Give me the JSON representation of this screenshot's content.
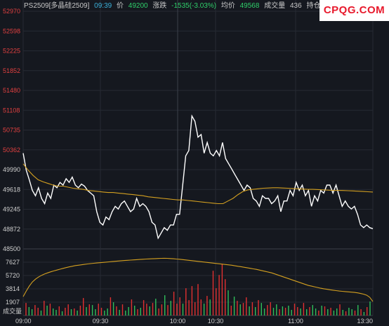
{
  "header": {
    "symbol": "PS2509[多晶硅2509]",
    "time": "09:39",
    "price_label": "价",
    "price": "49200",
    "change_label": "涨跌",
    "change": "-1535(-3.03%)",
    "avg_label": "均价",
    "avg": "49568",
    "volume_label": "成交量",
    "volume": "436",
    "oi_label": "持仓"
  },
  "logo": "CPQG.COM",
  "colors": {
    "background": "#15181f",
    "price_line": "#ffffff",
    "avg_line": "#d4a020",
    "up_tick": "#e04040",
    "vol_up": "#e03030",
    "vol_down": "#2fbf5a"
  },
  "chart_data": [
    {
      "type": "line",
      "title": "",
      "x_ticks": [
        "09:00",
        "09:30",
        "10:00",
        "10:30",
        "11:00",
        "13:30"
      ],
      "y_ticks": [
        "52970",
        "52598",
        "52225",
        "51852",
        "51480",
        "51108",
        "50735",
        "50362",
        "49990",
        "49618",
        "49245",
        "48872",
        "48500"
      ],
      "ylim": [
        48500,
        52970
      ],
      "series": [
        {
          "name": "",
          "values": [
            50300,
            49980,
            49800,
            49600,
            49500,
            49650,
            49450,
            49350,
            49550,
            49450,
            49700,
            49650,
            49750,
            49700,
            49820,
            49750,
            49850,
            49700,
            49650,
            49720,
            49680,
            49600,
            49550,
            49500,
            49200,
            49000,
            48950,
            49100,
            49050,
            49200,
            49300,
            49250,
            49350,
            49400,
            49300,
            49200,
            49250,
            49450,
            49300,
            49350,
            49300,
            49200,
            49000,
            48950,
            48700,
            48800,
            48900,
            48850,
            48950,
            48950,
            49150,
            49150,
            49700,
            50250,
            50350,
            51000,
            50900,
            50600,
            50650,
            50300,
            50500,
            50300,
            50250,
            50350,
            50250,
            50500,
            50200,
            50100,
            50000,
            49900,
            49800,
            49700,
            49600,
            49700,
            49650,
            49450,
            49400,
            49300,
            49500,
            49450,
            49450,
            49350,
            49400,
            49500,
            49200,
            49400,
            49400,
            49600,
            49500,
            49750,
            49600,
            49700,
            49500,
            49600,
            49300,
            49500,
            49400,
            49600,
            49550,
            49700,
            49700,
            49550,
            49700,
            49500,
            49300,
            49400,
            49300,
            49250,
            49300,
            49150,
            48950,
            48900,
            48950,
            48900,
            48880
          ]
        },
        {
          "name": "",
          "values": [
            50100,
            49980,
            49880,
            49800,
            49760,
            49730,
            49700,
            49680,
            49680,
            49660,
            49640,
            49630,
            49620,
            49600,
            49590,
            49580,
            49570,
            49560,
            49560,
            49550,
            49540,
            49530,
            49520,
            49510,
            49500,
            49480,
            49470,
            49460,
            49450,
            49440,
            49430,
            49420,
            49420,
            49410,
            49400,
            49390,
            49380,
            49370,
            49360,
            49350,
            49350,
            49400,
            49450,
            49520,
            49580,
            49610,
            49620,
            49630,
            49640,
            49645,
            49650,
            49650,
            49645,
            49640,
            49635,
            49630,
            49625,
            49620,
            49620,
            49615,
            49610,
            49605,
            49600,
            49600,
            49598,
            49595,
            49590,
            49585,
            49580,
            49575,
            49570
          ]
        }
      ]
    },
    {
      "type": "bar",
      "title": "",
      "y_label": "成交量",
      "y_ticks": [
        "7627",
        "5720",
        "3814",
        "1907"
      ],
      "ylim": [
        0,
        9534
      ],
      "volumes": [
        1800,
        1200,
        900,
        1500,
        1100,
        700,
        2100,
        1400,
        1700,
        1000,
        800,
        1300,
        600,
        1100,
        1600,
        900,
        1000,
        700,
        1400,
        2500,
        1200,
        1600,
        1500,
        900,
        1700,
        1100,
        700,
        1000,
        2600,
        1900,
        1300,
        800,
        1600,
        700,
        1200,
        2300,
        1400,
        900,
        1100,
        2200,
        1700,
        1300,
        1800,
        2400,
        1000,
        1600,
        2900,
        1500,
        2100,
        3400,
        1700,
        2600,
        1700,
        3900,
        2200,
        4200,
        1900,
        4500,
        2300,
        1700,
        2800,
        2300,
        6400,
        3900,
        5800,
        7400,
        5200,
        3600,
        1400,
        2700,
        2100,
        1600,
        1800,
        2600,
        1300,
        1900,
        1200,
        2200,
        1800,
        1000,
        1500,
        1900,
        1100,
        1600,
        900,
        1300,
        1100,
        1400,
        800,
        1700,
        1200,
        1000,
        1800,
        900,
        1200,
        1500,
        1000,
        700,
        1400,
        1300,
        900,
        1100,
        700,
        1000,
        1600,
        800,
        600,
        1100,
        900,
        700,
        1500,
        900,
        500,
        1200,
        2000
      ],
      "volume_up": [
        1,
        0,
        0,
        1,
        1,
        0,
        1,
        0,
        1,
        0,
        0,
        1,
        0,
        1,
        1,
        0,
        1,
        0,
        1,
        1,
        0,
        1,
        0,
        0,
        1,
        1,
        0,
        0,
        1,
        0,
        1,
        0,
        1,
        0,
        0,
        1,
        0,
        1,
        0,
        1,
        1,
        0,
        1,
        0,
        1,
        1,
        0,
        1,
        0,
        1,
        1,
        1,
        0,
        1,
        1,
        1,
        1,
        1,
        1,
        0,
        1,
        0,
        1,
        1,
        1,
        1,
        1,
        0,
        1,
        0,
        1,
        0,
        1,
        1,
        0,
        1,
        0,
        1,
        0,
        0,
        1,
        1,
        0,
        0,
        1,
        0,
        1,
        0,
        0,
        1,
        1,
        0,
        1,
        0,
        1,
        0,
        0,
        1,
        0,
        1,
        0,
        1,
        0,
        0,
        1,
        0,
        1,
        0,
        0,
        1,
        0,
        1,
        0,
        1,
        0
      ],
      "series": [
        {
          "name": "",
          "values": [
            2700,
            3500,
            4200,
            4800,
            5200,
            5500,
            5750,
            5950,
            6100,
            6250,
            6380,
            6500,
            6620,
            6740,
            6850,
            6950,
            7050,
            7150,
            7200,
            7260,
            7320,
            7380,
            7430,
            7480,
            7520,
            7560,
            7600,
            7640,
            7680,
            7720,
            7760,
            7800,
            7840,
            7870,
            7900,
            7930,
            7960,
            7990,
            8020,
            8050,
            8080,
            8100,
            8120,
            8140,
            8160,
            8180,
            8190,
            8180,
            8150,
            8120,
            8080,
            8050,
            8000,
            7950,
            7900,
            7850,
            7800,
            7750,
            7700,
            7650,
            7600,
            7550,
            7500,
            7450,
            7400,
            7350,
            7300,
            7250,
            7200,
            7120,
            7050,
            6980,
            6900,
            6830,
            6750,
            6670,
            6600,
            6500,
            6400,
            6300,
            6200,
            6100,
            5950,
            5800,
            5650,
            5500,
            5350,
            5200,
            5050,
            4900,
            4750,
            4600,
            4450,
            4300,
            4200,
            4100,
            4000,
            3900,
            3820,
            3750,
            3680,
            3620,
            3560,
            3500,
            3460,
            3420,
            3380,
            3340,
            3300,
            3240,
            3150,
            3050,
            2900,
            2600,
            2000
          ]
        }
      ]
    }
  ]
}
